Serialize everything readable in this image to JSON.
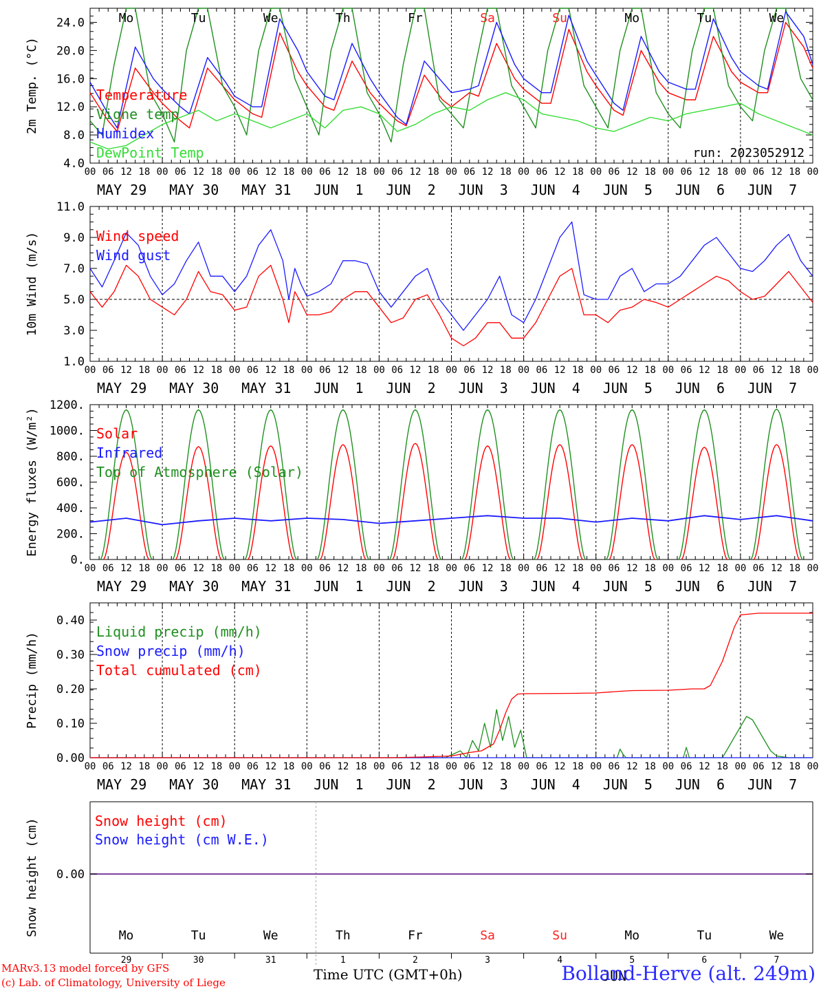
{
  "run_label": "run: 2023052912",
  "days": {
    "names": [
      "Mo",
      "Tu",
      "We",
      "Th",
      "Fr",
      "Sa",
      "Su",
      "Mo",
      "Tu",
      "We"
    ],
    "weekend_color": "#ff2020",
    "dates": [
      "MAY 29",
      "MAY 30",
      "MAY 31",
      "JUN  1",
      "JUN  2",
      "JUN  3",
      "JUN  4",
      "JUN  5",
      "JUN  6",
      "JUN  7"
    ],
    "day_numbers": [
      "29",
      "30",
      "31",
      "1",
      "2",
      "3",
      "4",
      "5",
      "6",
      "7"
    ],
    "hour_ticks": [
      "00",
      "06",
      "12",
      "18"
    ],
    "last_tick": "00",
    "bottom_month_label": "JUN"
  },
  "footer": {
    "model_line": "MARv3.13 model forced by GFS",
    "credit_line": "(c) Lab. of Climatology, University of Liege",
    "time_axis_label": "Time UTC (GMT+0h)",
    "station": "Bolland-Herve (alt. 249m)"
  },
  "colors": {
    "red": "#ff0000",
    "green": "#1f8f1f",
    "blue": "#1a1aff",
    "lightgreen": "#33dd33",
    "purple": "#8040a0"
  },
  "chart_data": [
    {
      "id": "temperature",
      "type": "line",
      "ylabel": "2m Temp. (°C)",
      "ylim": [
        4,
        26
      ],
      "yticks": [
        "4.0",
        "8.0",
        "12.0",
        "16.0",
        "20.0",
        "24.0"
      ],
      "x_unit": "hours since MAY 29 00 UTC",
      "series": [
        {
          "name": "Temperature",
          "color": "#ff0000",
          "x": [
            0,
            6,
            9,
            15,
            21,
            24,
            30,
            33,
            39,
            45,
            48,
            54,
            57,
            63,
            69,
            72,
            78,
            81,
            87,
            93,
            96,
            102,
            105,
            111,
            117,
            120,
            126,
            129,
            135,
            141,
            144,
            150,
            153,
            159,
            165,
            168,
            174,
            177,
            183,
            189,
            192,
            198,
            201,
            207,
            213,
            216,
            222,
            225,
            231,
            237,
            240
          ],
          "y": [
            14,
            10,
            8.5,
            17.5,
            14,
            12.5,
            10,
            9,
            17.5,
            14.5,
            13,
            11,
            10.5,
            22.5,
            17,
            15,
            12,
            11.5,
            18.5,
            14,
            12.5,
            10,
            9.3,
            16.5,
            13,
            12,
            14,
            13.5,
            21,
            16,
            14.5,
            12.5,
            12.5,
            23,
            17,
            15,
            11.5,
            10.8,
            20,
            15.5,
            14,
            13,
            13,
            22,
            17,
            15.5,
            14,
            14,
            24,
            20.5,
            17.5
          ]
        },
        {
          "name": "Vigne temp",
          "color": "#1f8f1f",
          "x": [
            0,
            4,
            8,
            12,
            15,
            20,
            24,
            28,
            32,
            36,
            39,
            44,
            48,
            52,
            56,
            60,
            63,
            68,
            72,
            76,
            80,
            84,
            87,
            92,
            96,
            100,
            104,
            108,
            111,
            116,
            120,
            124,
            128,
            132,
            135,
            140,
            144,
            148,
            152,
            156,
            159,
            164,
            168,
            172,
            176,
            180,
            183,
            188,
            192,
            196,
            200,
            204,
            207,
            212,
            216,
            220,
            224,
            228,
            231,
            236,
            240
          ],
          "y": [
            10,
            8,
            18,
            26,
            26,
            14,
            11,
            7,
            20,
            26,
            26,
            15,
            12,
            8,
            20,
            26,
            26,
            16,
            12,
            8,
            20,
            26,
            26,
            14,
            11,
            7,
            18,
            26,
            26,
            13,
            11,
            9,
            18,
            26,
            26,
            15,
            12,
            9,
            20,
            26,
            26,
            15,
            12,
            9,
            20,
            26,
            26,
            14,
            11,
            9,
            20,
            26,
            26,
            15,
            12,
            10,
            20,
            26,
            26,
            16,
            13
          ]
        },
        {
          "name": "Humidex",
          "color": "#1a1aff",
          "x": [
            0,
            6,
            9,
            15,
            21,
            24,
            30,
            33,
            39,
            45,
            48,
            54,
            57,
            63,
            69,
            72,
            78,
            81,
            87,
            93,
            96,
            102,
            105,
            111,
            117,
            120,
            126,
            129,
            135,
            141,
            144,
            150,
            153,
            159,
            165,
            168,
            174,
            177,
            183,
            189,
            192,
            198,
            201,
            207,
            213,
            216,
            222,
            225,
            231,
            237,
            240
          ],
          "y": [
            15.5,
            11,
            9,
            20.5,
            16,
            14.5,
            12,
            11,
            19,
            15.5,
            13.5,
            12,
            12,
            24.5,
            20,
            17,
            13.5,
            13,
            21,
            16,
            14,
            10.5,
            9.5,
            18.5,
            15.5,
            14,
            14.5,
            15,
            24,
            18,
            16,
            14,
            14,
            25,
            18.5,
            16.5,
            12.5,
            11.5,
            22,
            17,
            15.5,
            14.5,
            14.5,
            24.5,
            19,
            17,
            15,
            14.5,
            25.5,
            22,
            18
          ]
        },
        {
          "name": "DewPoint Temp",
          "color": "#33dd33",
          "x": [
            0,
            6,
            12,
            18,
            24,
            30,
            36,
            42,
            48,
            54,
            60,
            66,
            72,
            78,
            84,
            90,
            96,
            102,
            108,
            114,
            120,
            126,
            132,
            138,
            144,
            150,
            156,
            162,
            168,
            174,
            180,
            186,
            192,
            198,
            204,
            210,
            216,
            222,
            228,
            234,
            240
          ],
          "y": [
            7,
            6,
            6.5,
            8,
            9.5,
            10.5,
            11.5,
            10,
            11,
            10,
            9,
            10,
            11,
            9,
            11.5,
            12,
            11,
            8.5,
            9.5,
            11,
            12,
            11.5,
            13,
            14,
            13,
            11,
            10.5,
            10,
            9,
            8.5,
            9.5,
            10.5,
            10,
            11,
            11.5,
            12,
            12.5,
            11,
            10,
            9,
            8
          ]
        }
      ]
    },
    {
      "id": "wind",
      "type": "line",
      "ylabel": "10m Wind (m/s)",
      "ylim": [
        1,
        11
      ],
      "yticks": [
        "1.0",
        "3.0",
        "5.0",
        "7.0",
        "9.0",
        "11.0"
      ],
      "reference_line": 5,
      "series": [
        {
          "name": "Wind speed",
          "color": "#ff0000",
          "x": [
            0,
            4,
            8,
            12,
            16,
            20,
            24,
            28,
            32,
            36,
            40,
            44,
            48,
            52,
            56,
            60,
            64,
            66,
            68,
            70,
            72,
            76,
            80,
            84,
            88,
            92,
            96,
            100,
            104,
            108,
            112,
            116,
            120,
            124,
            128,
            132,
            136,
            140,
            144,
            148,
            152,
            156,
            160,
            164,
            168,
            172,
            176,
            180,
            184,
            188,
            192,
            196,
            200,
            204,
            208,
            212,
            216,
            220,
            224,
            228,
            232,
            236,
            240
          ],
          "y": [
            5.5,
            4.5,
            5.5,
            7.2,
            6.5,
            5,
            4.5,
            4,
            5,
            6.8,
            5.5,
            5.3,
            4.3,
            4.5,
            6.5,
            7.2,
            5,
            3.5,
            5.5,
            4.8,
            4,
            4,
            4.2,
            5,
            5.5,
            5.5,
            4.5,
            3.5,
            3.8,
            5,
            5.3,
            4,
            2.5,
            2,
            2.5,
            3.5,
            3.5,
            2.5,
            2.5,
            3.5,
            5,
            6.5,
            7,
            4,
            4,
            3.5,
            4.3,
            4.5,
            5,
            4.8,
            4.5,
            5,
            5.5,
            6,
            6.5,
            6.2,
            5.5,
            5,
            5.2,
            6,
            6.8,
            5.8,
            4.8
          ]
        },
        {
          "name": "Wind gust",
          "color": "#1a1aff",
          "x": [
            0,
            4,
            8,
            12,
            16,
            20,
            24,
            28,
            32,
            36,
            40,
            44,
            48,
            52,
            56,
            60,
            64,
            66,
            68,
            70,
            72,
            76,
            80,
            84,
            88,
            92,
            96,
            100,
            104,
            108,
            112,
            116,
            120,
            124,
            128,
            132,
            136,
            140,
            144,
            148,
            152,
            156,
            160,
            164,
            168,
            172,
            176,
            180,
            184,
            188,
            192,
            196,
            200,
            204,
            208,
            212,
            216,
            220,
            224,
            228,
            232,
            236,
            240
          ],
          "y": [
            7,
            5.8,
            7.5,
            9.3,
            8.5,
            6.5,
            5.3,
            6,
            7.5,
            8.7,
            6.5,
            6.5,
            5.5,
            6.5,
            8.5,
            9.5,
            7.5,
            5,
            7,
            6,
            5.2,
            5.5,
            6,
            7.5,
            7.5,
            7.3,
            5.5,
            4.5,
            5.5,
            6.5,
            7,
            5,
            4,
            3,
            4,
            5,
            6.5,
            4,
            3.5,
            5,
            7,
            9,
            10,
            5.3,
            5,
            5,
            6.5,
            7,
            5.5,
            6,
            6,
            6.5,
            7.5,
            8.5,
            9,
            8,
            7,
            6.8,
            7.5,
            8.5,
            9.2,
            7.5,
            6.5
          ]
        }
      ]
    },
    {
      "id": "energy",
      "type": "line",
      "ylabel": "Energy fluxes (W/m²)",
      "ylim": [
        0,
        1200
      ],
      "yticks": [
        "0.",
        "200.",
        "400.",
        "600.",
        "800.",
        "1000.",
        "1200."
      ],
      "series": [
        {
          "name": "Solar",
          "color": "#ff0000",
          "daily_peak": [
            830,
            875,
            880,
            890,
            900,
            880,
            890,
            890,
            870,
            890
          ]
        },
        {
          "name": "Infrared",
          "color": "#1a1aff",
          "x": [
            0,
            12,
            24,
            36,
            48,
            60,
            72,
            84,
            96,
            108,
            120,
            132,
            144,
            156,
            168,
            180,
            192,
            204,
            216,
            228,
            240
          ],
          "y": [
            290,
            320,
            270,
            300,
            320,
            300,
            320,
            310,
            280,
            300,
            320,
            340,
            320,
            320,
            290,
            320,
            300,
            340,
            310,
            340,
            300
          ]
        },
        {
          "name": "Top of Atmosphere (Solar)",
          "color": "#1f8f1f",
          "daily_peak": [
            1160,
            1160,
            1160,
            1160,
            1160,
            1160,
            1160,
            1160,
            1160,
            1165
          ]
        }
      ]
    },
    {
      "id": "precip",
      "type": "line",
      "ylabel": "Precip (mm/h)",
      "ylim": [
        0,
        0.45
      ],
      "yticks": [
        "0.00",
        "0.10",
        "0.20",
        "0.30",
        "0.40"
      ],
      "series": [
        {
          "name": "Liquid precip (mm/h)",
          "color": "#1f8f1f",
          "x": [
            0,
            100,
            118,
            123,
            125,
            127,
            129,
            131,
            133,
            135,
            137,
            139,
            141,
            143,
            145,
            150,
            160,
            170,
            175,
            176,
            177,
            178,
            180,
            190,
            197,
            198,
            199,
            205,
            210,
            212,
            214,
            216,
            218,
            220,
            222,
            224,
            226,
            228,
            232,
            240
          ],
          "y": [
            0,
            0,
            0,
            0.02,
            0,
            0.05,
            0.02,
            0.1,
            0.03,
            0.14,
            0.05,
            0.12,
            0.03,
            0.08,
            0,
            0,
            0,
            0,
            0,
            0.025,
            0.01,
            0,
            0,
            0,
            0,
            0.03,
            0,
            0,
            0,
            0.03,
            0.06,
            0.09,
            0.12,
            0.11,
            0.08,
            0.05,
            0.02,
            0.005,
            0,
            0
          ]
        },
        {
          "name": "Snow precip (mm/h)",
          "color": "#1a1aff",
          "x": [
            0,
            240
          ],
          "y": [
            0,
            0
          ]
        },
        {
          "name": "Total cumulated (cm)",
          "color": "#ff0000",
          "x": [
            0,
            100,
            110,
            120,
            126,
            130,
            134,
            136,
            138,
            140,
            142,
            144,
            160,
            168,
            176,
            180,
            192,
            196,
            200,
            204,
            206,
            210,
            214,
            216,
            222,
            240
          ],
          "y": [
            0,
            0,
            0.002,
            0.005,
            0.015,
            0.02,
            0.04,
            0.08,
            0.13,
            0.17,
            0.185,
            0.186,
            0.187,
            0.188,
            0.193,
            0.195,
            0.196,
            0.198,
            0.2,
            0.2,
            0.21,
            0.28,
            0.38,
            0.415,
            0.42,
            0.42
          ]
        }
      ]
    },
    {
      "id": "snow",
      "type": "line",
      "ylabel": "Snow height (cm)",
      "yticks": [
        "0.00"
      ],
      "series": [
        {
          "name": "Snow height (cm)",
          "color": "#ff0000",
          "x": [
            0,
            240
          ],
          "y": [
            0,
            0
          ]
        },
        {
          "name": "Snow height (cm W.E.)",
          "color": "#1a1aff",
          "x": [
            0,
            240
          ],
          "y": [
            0,
            0
          ]
        }
      ]
    }
  ]
}
